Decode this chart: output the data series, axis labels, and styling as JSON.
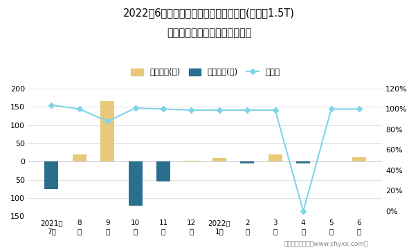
{
  "title_line1": "2022年6月雪佛兰迈锐宝旗下最畅销轿车(迈锐宝1.5T)",
  "title_line2": "近一年库存情况及产销率统计图",
  "categories": [
    "2021年\n7月",
    "8\n月",
    "9\n月",
    "10\n月",
    "11\n月",
    "12\n月",
    "2022年\n1月",
    "2\n月",
    "3\n月",
    "4\n月",
    "5\n月",
    "6\n月"
  ],
  "jiya": [
    0,
    20,
    165,
    0,
    0,
    3,
    10,
    0,
    20,
    0,
    0,
    12
  ],
  "qingcang": [
    -75,
    0,
    0,
    -120,
    -55,
    0,
    0,
    -5,
    0,
    -5,
    0,
    0
  ],
  "chanxiao": [
    1.04,
    1.0,
    0.88,
    1.01,
    1.0,
    0.99,
    0.99,
    0.99,
    0.99,
    0.0,
    1.0,
    1.0
  ],
  "jiya_color": "#E8C97A",
  "qingcang_color": "#2B6F8E",
  "chanxiao_color": "#7FD4E8",
  "chanxiao_marker": "D",
  "ylim_left": [
    -150,
    200
  ],
  "ylim_right": [
    -0.05,
    1.2
  ],
  "yticks_left": [
    -150,
    -100,
    -50,
    0,
    50,
    100,
    150,
    200
  ],
  "ytick_labels_left": [
    "150",
    "100",
    "50",
    "0",
    "50",
    "100",
    "150",
    "200"
  ],
  "yticks_right": [
    0.0,
    0.2,
    0.4,
    0.6,
    0.8,
    1.0,
    1.2
  ],
  "ytick_labels_right": [
    "0%",
    "20%",
    "40%",
    "60%",
    "80%",
    "100%",
    "120%"
  ],
  "legend_labels": [
    "积压库存(辆)",
    "清仓库存(辆)",
    "产销率"
  ],
  "footer": "制图：智研咨询（www.chyxx.com）",
  "bg_color": "#FFFFFF",
  "bar_width": 0.5
}
